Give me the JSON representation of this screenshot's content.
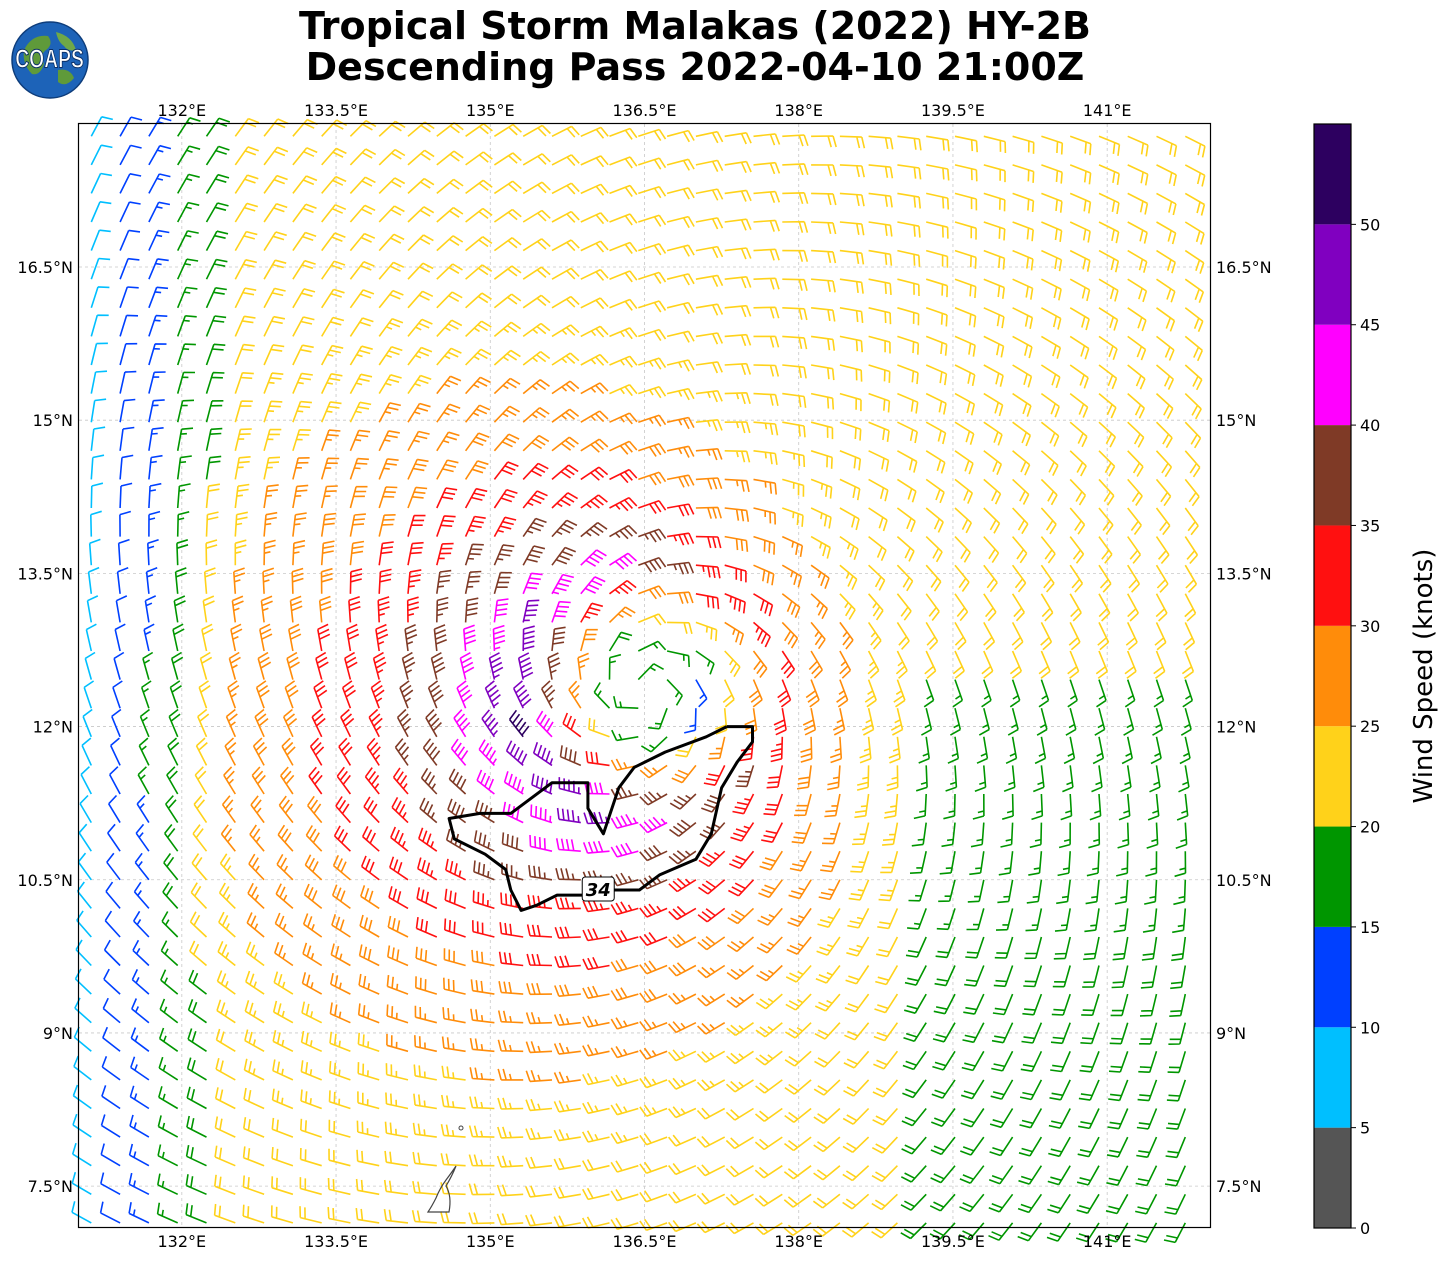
{
  "title": {
    "line1": "Tropical Storm Malakas (2022) HY-2B",
    "line2": "Descending Pass 2022-04-10 21:00Z"
  },
  "logo": {
    "text": "COAPS",
    "icon": "globe-logo-icon"
  },
  "map": {
    "lon_range": [
      131.0,
      142.0
    ],
    "lat_range": [
      7.1,
      17.9
    ],
    "lon_ticks": [
      {
        "value": 132.0,
        "label": "132°E"
      },
      {
        "value": 133.5,
        "label": "133.5°E"
      },
      {
        "value": 135.0,
        "label": "135°E"
      },
      {
        "value": 136.5,
        "label": "136.5°E"
      },
      {
        "value": 138.0,
        "label": "138°E"
      },
      {
        "value": 139.5,
        "label": "139.5°E"
      },
      {
        "value": 141.0,
        "label": "141°E"
      }
    ],
    "lat_ticks": [
      {
        "value": 16.5,
        "label": "16.5°N"
      },
      {
        "value": 15.0,
        "label": "15°N"
      },
      {
        "value": 13.5,
        "label": "13.5°N"
      },
      {
        "value": 12.0,
        "label": "12°N"
      },
      {
        "value": 10.5,
        "label": "10.5°N"
      },
      {
        "value": 9.0,
        "label": "9°N"
      },
      {
        "value": 7.5,
        "label": "7.5°N"
      }
    ],
    "grid": true,
    "storm_center": {
      "lon": 136.5,
      "lat": 12.35
    },
    "contour_34kt": {
      "label": "34",
      "label_position": {
        "lon": 136.05,
        "lat": 10.4
      },
      "points": [
        [
          137.3,
          12.0
        ],
        [
          137.1,
          11.9
        ],
        [
          136.7,
          11.75
        ],
        [
          136.4,
          11.6
        ],
        [
          136.25,
          11.4
        ],
        [
          136.1,
          10.95
        ],
        [
          135.95,
          11.2
        ],
        [
          135.95,
          11.45
        ],
        [
          135.6,
          11.45
        ],
        [
          135.4,
          11.3
        ],
        [
          135.2,
          11.15
        ],
        [
          134.9,
          11.15
        ],
        [
          134.6,
          11.1
        ],
        [
          134.65,
          10.9
        ],
        [
          134.95,
          10.75
        ],
        [
          135.15,
          10.6
        ],
        [
          135.2,
          10.4
        ],
        [
          135.3,
          10.2
        ],
        [
          135.45,
          10.25
        ],
        [
          135.65,
          10.35
        ],
        [
          135.9,
          10.35
        ],
        [
          136.2,
          10.4
        ],
        [
          136.45,
          10.4
        ],
        [
          136.65,
          10.55
        ],
        [
          137.0,
          10.7
        ],
        [
          137.15,
          10.95
        ],
        [
          137.25,
          11.4
        ],
        [
          137.4,
          11.65
        ],
        [
          137.55,
          11.85
        ],
        [
          137.55,
          12.0
        ],
        [
          137.3,
          12.0
        ]
      ]
    },
    "wind_field": {
      "description_units": "knots",
      "peak_speed": 42,
      "radius_of_max_wind_deg": 1.25,
      "background_speed": 21,
      "asymmetry_direction_deg": 200
    }
  },
  "colorbar": {
    "title": "Wind Speed (knots)",
    "bins": [
      {
        "from": 0,
        "to": 5,
        "color": "#555555"
      },
      {
        "from": 5,
        "to": 10,
        "color": "#00bfff"
      },
      {
        "from": 10,
        "to": 15,
        "color": "#0040ff"
      },
      {
        "from": 15,
        "to": 20,
        "color": "#009600"
      },
      {
        "from": 20,
        "to": 25,
        "color": "#ffd21a"
      },
      {
        "from": 25,
        "to": 30,
        "color": "#ff8c0a"
      },
      {
        "from": 30,
        "to": 35,
        "color": "#ff1010"
      },
      {
        "from": 35,
        "to": 40,
        "color": "#7f3a26"
      },
      {
        "from": 40,
        "to": 45,
        "color": "#ff00ff"
      },
      {
        "from": 45,
        "to": 50,
        "color": "#8000c0"
      },
      {
        "from": 50,
        "to": 55,
        "color": "#2d0060"
      }
    ],
    "tick_labels": [
      "0",
      "5",
      "10",
      "15",
      "20",
      "25",
      "30",
      "35",
      "40",
      "45",
      "50"
    ]
  }
}
